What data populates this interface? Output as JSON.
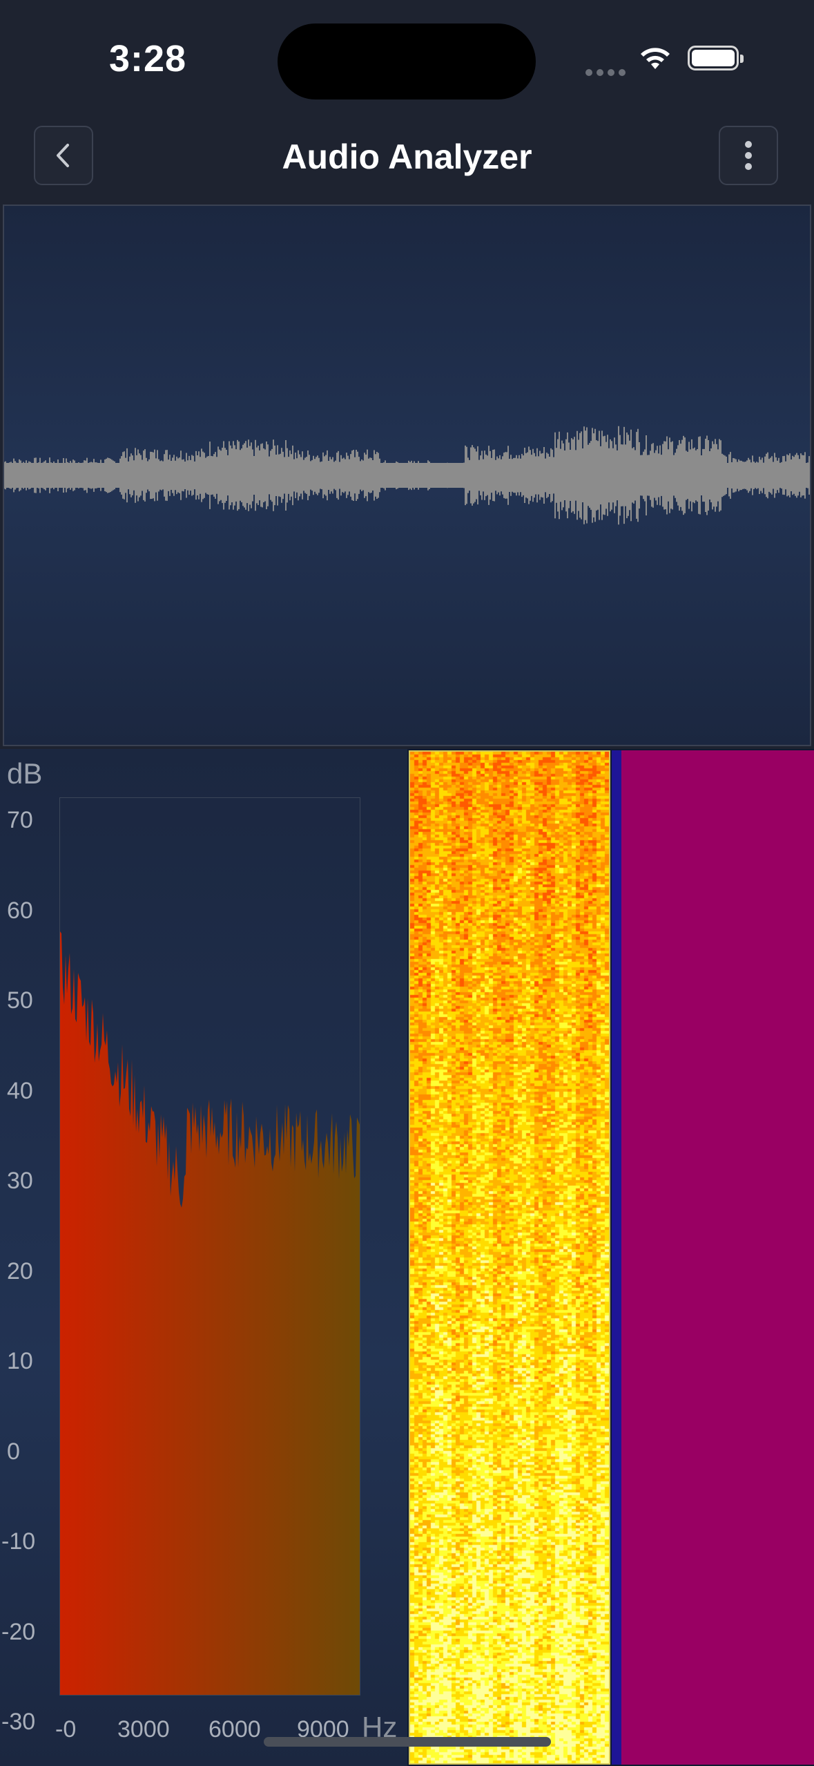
{
  "status_bar": {
    "time": "3:28",
    "signal_icon": "signal-dots-icon",
    "wifi_icon": "wifi-icon",
    "battery_icon": "battery-icon"
  },
  "nav": {
    "title": "Audio Analyzer",
    "back_icon": "chevron-left-icon",
    "menu_icon": "more-vertical-icon"
  },
  "waveform": {
    "color": "#8c8c8c",
    "background": "#223353"
  },
  "spectrum": {
    "y_label": "dB",
    "x_label": "Hz",
    "y_ticks": [
      "70",
      "60",
      "50",
      "40",
      "30",
      "20",
      "10",
      "0",
      "-10",
      "-20",
      "-30"
    ],
    "x_ticks": [
      "-0",
      "3000",
      "6000",
      "9000"
    ],
    "colors": {
      "low_freq": "#cc2200",
      "high_freq": "#6e4a06"
    }
  },
  "spectrogram": {
    "palette": [
      "#ff5a00",
      "#ff8c00",
      "#ffb400",
      "#ffdc00",
      "#ffff33",
      "#ffff99"
    ],
    "blue_bar_color": "#1e1596",
    "fill_color": "#990063"
  }
}
